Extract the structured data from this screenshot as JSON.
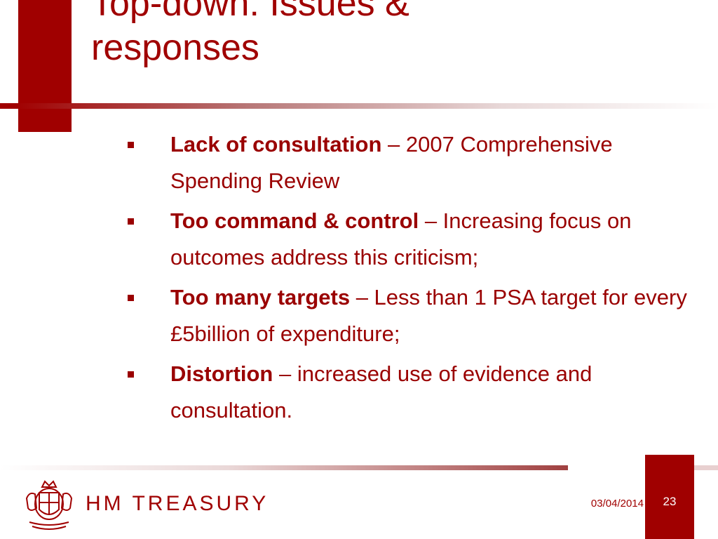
{
  "slide": {
    "title": "Top-down: Issues & responses",
    "bullets": [
      {
        "bold": "Lack of consultation",
        "rest": " – 2007 Comprehensive Spending Review"
      },
      {
        "bold": "Too command & control",
        "rest": " – Increasing focus on outcomes address this criticism;"
      },
      {
        "bold": "Too many targets",
        "rest": " – Less than 1 PSA target for every £5billion of expenditure;"
      },
      {
        "bold": "Distortion",
        "rest": " – increased use of evidence and consultation."
      }
    ]
  },
  "footer": {
    "brand": "HM TREASURY",
    "date": "03/04/2014",
    "page_number": "23"
  },
  "colors": {
    "accent": "#a00000",
    "text": "#9a0000",
    "background": "#ffffff"
  }
}
